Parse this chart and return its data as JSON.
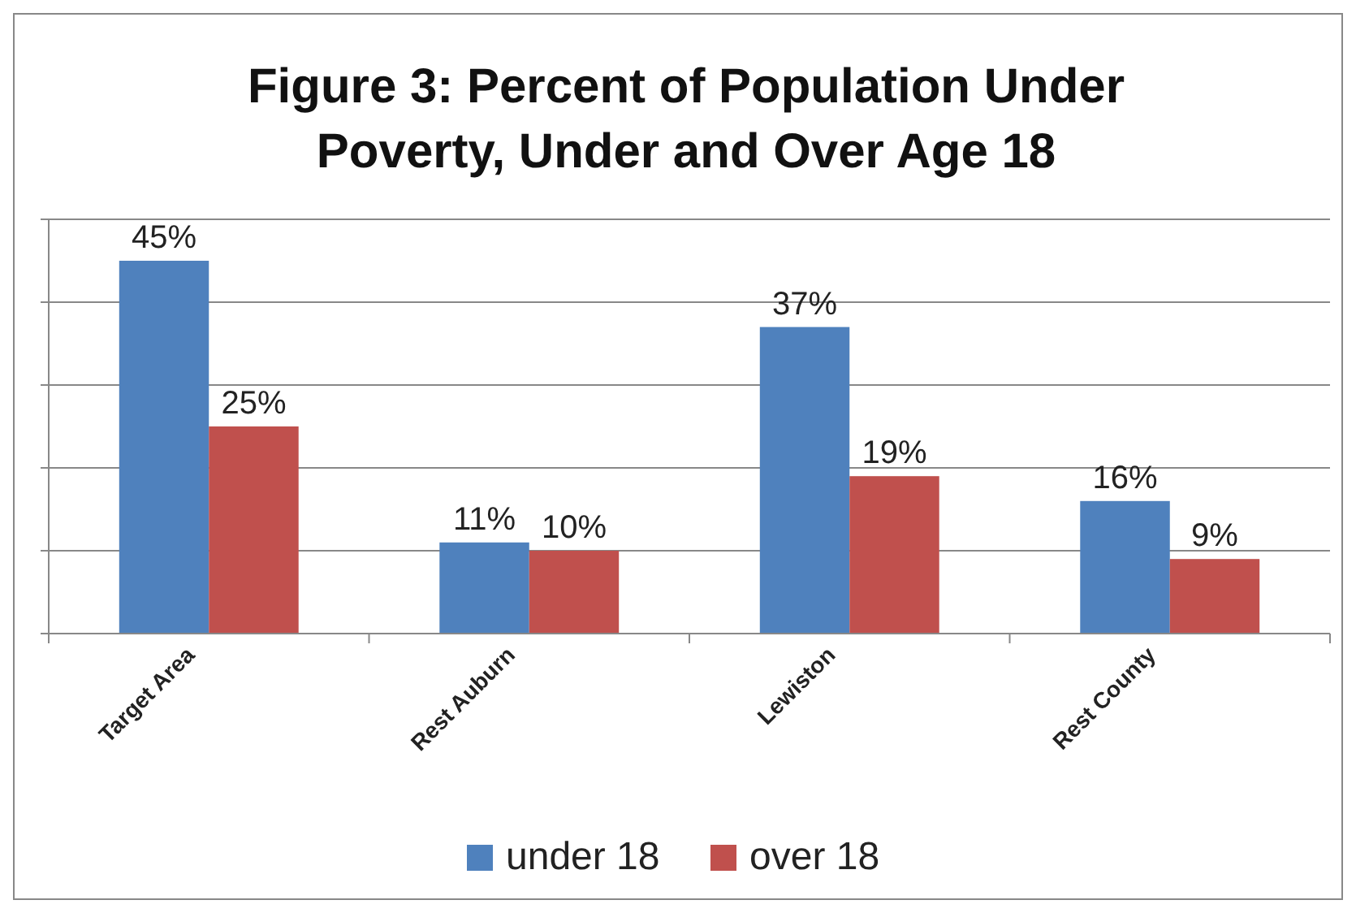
{
  "chart_data": {
    "type": "bar",
    "title": "Figure 3: Percent of Population Under Poverty, Under and Over Age 18",
    "categories": [
      "Target Area",
      "Rest Auburn",
      "Lewiston",
      "Rest County"
    ],
    "series": [
      {
        "name": "under 18",
        "color": "#4f81bd",
        "values": [
          45,
          11,
          37,
          16
        ],
        "value_labels": [
          "45%",
          "11%",
          "37%",
          "16%"
        ]
      },
      {
        "name": "over 18",
        "color": "#c0504d",
        "values": [
          25,
          10,
          19,
          9
        ],
        "value_labels": [
          "25%",
          "10%",
          "19%",
          "9%"
        ]
      }
    ],
    "ylim": [
      0,
      50
    ],
    "yticks": [
      {
        "value": 0,
        "label": null
      },
      {
        "value": 10,
        "label": null
      },
      {
        "value": 20,
        "label": null
      },
      {
        "value": 30,
        "label": null
      },
      {
        "value": 40,
        "label": null
      },
      {
        "value": 50,
        "label": null
      }
    ],
    "grid": "y",
    "legend": "bottom",
    "tick_labels": "x"
  }
}
